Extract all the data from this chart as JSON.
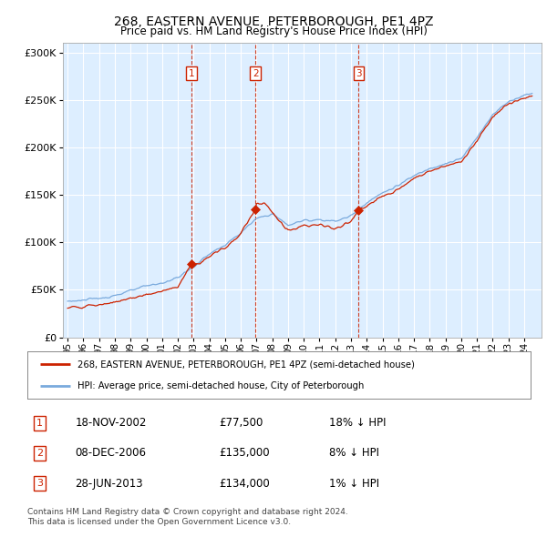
{
  "title": "268, EASTERN AVENUE, PETERBOROUGH, PE1 4PZ",
  "subtitle": "Price paid vs. HM Land Registry's House Price Index (HPI)",
  "legend_entry1": "268, EASTERN AVENUE, PETERBOROUGH, PE1 4PZ (semi-detached house)",
  "legend_entry2": "HPI: Average price, semi-detached house, City of Peterborough",
  "footer": "Contains HM Land Registry data © Crown copyright and database right 2024.\nThis data is licensed under the Open Government Licence v3.0.",
  "transactions": [
    {
      "num": 1,
      "date": "18-NOV-2002",
      "price": 77500,
      "hpi_rel": "18% ↓ HPI",
      "year": 2002.88
    },
    {
      "num": 2,
      "date": "08-DEC-2006",
      "price": 135000,
      "hpi_rel": "8% ↓ HPI",
      "year": 2006.93
    },
    {
      "num": 3,
      "date": "28-JUN-2013",
      "price": 134000,
      "hpi_rel": "1% ↓ HPI",
      "year": 2013.49
    }
  ],
  "hpi_color": "#7aaadd",
  "price_color": "#cc2200",
  "vline_color": "#cc2200",
  "box_color": "#cc2200",
  "bg_color": "#ddeeff",
  "grid_color": "#ffffff",
  "ylim": [
    0,
    310000
  ],
  "yticks": [
    0,
    50000,
    100000,
    150000,
    200000,
    250000,
    300000
  ],
  "xlim_start": 1994.7,
  "xlim_end": 2025.1,
  "xticks": [
    1995,
    1996,
    1997,
    1998,
    1999,
    2000,
    2001,
    2002,
    2003,
    2004,
    2005,
    2006,
    2007,
    2008,
    2009,
    2010,
    2011,
    2012,
    2013,
    2014,
    2015,
    2016,
    2017,
    2018,
    2019,
    2020,
    2021,
    2022,
    2023,
    2024
  ]
}
